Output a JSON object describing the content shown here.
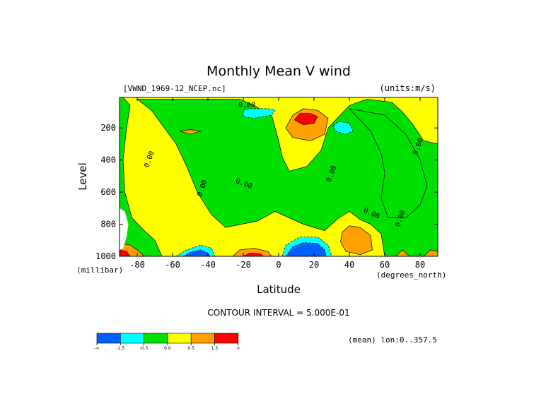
{
  "chart_data": {
    "type": "heatmap",
    "title": "Monthly Mean V wind",
    "dataset_label": "[VWND_1969-12_NCEP.nc]",
    "units_label": "(units:m/s)",
    "xlabel": "Latitude",
    "x_units": "(degrees_north)",
    "ylabel": "Level",
    "y_units": "(millibar)",
    "xlim": [
      -90,
      90
    ],
    "ylim": [
      1000,
      10
    ],
    "x_ticks": [
      -80,
      -60,
      -40,
      -20,
      0,
      20,
      40,
      60,
      80
    ],
    "x_tick_labels": [
      "-80",
      "-60",
      "-40",
      "-20",
      "0",
      "20",
      "40",
      "60",
      "80"
    ],
    "y_ticks": [
      200,
      400,
      600,
      800,
      1000
    ],
    "y_tick_labels": [
      "200",
      "400",
      "600",
      "800",
      "1000"
    ],
    "contour_interval_text": "CONTOUR INTERVAL = 5.000E-01",
    "contour_labels": [
      "0.00",
      "0.00",
      "0.00",
      "0.00",
      "0.00",
      "0.00",
      "0.00",
      "0.00"
    ],
    "legend": {
      "colors": [
        "#0060ff",
        "#00ffff",
        "#00e000",
        "#ffff00",
        "#ffa000",
        "#ff0000"
      ],
      "tick_labels": [
        "-∞",
        "-1.5",
        "-0.5",
        "0.0",
        "0.5",
        "1.5",
        "∞"
      ]
    },
    "footer_note": "(mean) lon:0..357.5",
    "fields": [
      {
        "level": "yellow",
        "points": [
          [
            -90,
            10
          ],
          [
            90,
            10
          ],
          [
            90,
            1000
          ],
          [
            -90,
            1000
          ]
        ]
      },
      {
        "level": "green",
        "points": [
          [
            -88,
            10
          ],
          [
            -84,
            60
          ],
          [
            -86,
            200
          ],
          [
            -88,
            400
          ],
          [
            -87,
            600
          ],
          [
            -83,
            760
          ],
          [
            -76,
            840
          ],
          [
            -70,
            900
          ],
          [
            -66,
            1000
          ],
          [
            -90,
            1000
          ],
          [
            -90,
            10
          ]
        ]
      },
      {
        "level": "green",
        "points": [
          [
            -80,
            20
          ],
          [
            -72,
            90
          ],
          [
            -66,
            180
          ],
          [
            -58,
            300
          ],
          [
            -52,
            440
          ],
          [
            -46,
            600
          ],
          [
            -38,
            740
          ],
          [
            -30,
            820
          ],
          [
            -12,
            780
          ],
          [
            -2,
            720
          ],
          [
            6,
            760
          ],
          [
            14,
            800
          ],
          [
            26,
            840
          ],
          [
            34,
            760
          ],
          [
            40,
            720
          ],
          [
            46,
            770
          ],
          [
            52,
            800
          ],
          [
            58,
            860
          ],
          [
            60,
            1000
          ],
          [
            90,
            1000
          ],
          [
            90,
            300
          ],
          [
            82,
            280
          ],
          [
            76,
            180
          ],
          [
            70,
            100
          ],
          [
            64,
            40
          ],
          [
            50,
            20
          ],
          [
            40,
            60
          ],
          [
            28,
            200
          ],
          [
            24,
            340
          ],
          [
            16,
            440
          ],
          [
            6,
            470
          ],
          [
            2,
            380
          ],
          [
            0,
            280
          ],
          [
            -4,
            120
          ],
          [
            -14,
            60
          ],
          [
            -22,
            20
          ]
        ]
      },
      {
        "level": "green",
        "points": [
          [
            40,
            80
          ],
          [
            52,
            220
          ],
          [
            58,
            360
          ],
          [
            60,
            480
          ],
          [
            58,
            640
          ],
          [
            62,
            760
          ],
          [
            72,
            760
          ],
          [
            80,
            680
          ],
          [
            84,
            560
          ],
          [
            80,
            400
          ],
          [
            72,
            240
          ],
          [
            60,
            120
          ]
        ]
      },
      {
        "level": "cyan",
        "points": [
          [
            -20,
            90
          ],
          [
            -16,
            80
          ],
          [
            -6,
            80
          ],
          [
            -2,
            90
          ],
          [
            -4,
            120
          ],
          [
            -14,
            140
          ],
          [
            -20,
            130
          ]
        ]
      },
      {
        "level": "cyan",
        "points": [
          [
            31,
            185
          ],
          [
            34,
            160
          ],
          [
            40,
            170
          ],
          [
            42,
            220
          ],
          [
            38,
            240
          ],
          [
            32,
            220
          ]
        ]
      },
      {
        "level": "cyan",
        "points": [
          [
            -58,
            1000
          ],
          [
            -52,
            960
          ],
          [
            -44,
            930
          ],
          [
            -38,
            950
          ],
          [
            -36,
            1000
          ]
        ]
      },
      {
        "level": "cyan",
        "points": [
          [
            2,
            1000
          ],
          [
            4,
            930
          ],
          [
            12,
            880
          ],
          [
            22,
            880
          ],
          [
            28,
            930
          ],
          [
            30,
            1000
          ]
        ]
      },
      {
        "level": "blue",
        "points": [
          [
            -54,
            1000
          ],
          [
            -50,
            975
          ],
          [
            -44,
            960
          ],
          [
            -40,
            980
          ],
          [
            -39,
            1000
          ]
        ]
      },
      {
        "level": "blue",
        "points": [
          [
            4,
            1000
          ],
          [
            8,
            940
          ],
          [
            14,
            915
          ],
          [
            22,
            920
          ],
          [
            26,
            960
          ],
          [
            27,
            1000
          ]
        ]
      },
      {
        "level": "orange",
        "points": [
          [
            4,
            200
          ],
          [
            8,
            120
          ],
          [
            14,
            80
          ],
          [
            22,
            90
          ],
          [
            28,
            140
          ],
          [
            26,
            240
          ],
          [
            18,
            280
          ],
          [
            8,
            260
          ]
        ]
      },
      {
        "level": "orange",
        "points": [
          [
            -56,
            220
          ],
          [
            -50,
            210
          ],
          [
            -44,
            220
          ],
          [
            -50,
            240
          ]
        ]
      },
      {
        "level": "orange",
        "points": [
          [
            36,
            850
          ],
          [
            40,
            810
          ],
          [
            46,
            820
          ],
          [
            52,
            870
          ],
          [
            53,
            960
          ],
          [
            46,
            990
          ],
          [
            38,
            970
          ],
          [
            35,
            910
          ]
        ]
      },
      {
        "level": "orange",
        "points": [
          [
            -26,
            1000
          ],
          [
            -22,
            960
          ],
          [
            -14,
            950
          ],
          [
            -6,
            970
          ],
          [
            -4,
            1000
          ]
        ]
      },
      {
        "level": "orange",
        "points": [
          [
            -90,
            920
          ],
          [
            -84,
            930
          ],
          [
            -80,
            960
          ],
          [
            -76,
            1000
          ],
          [
            -90,
            1000
          ]
        ]
      },
      {
        "level": "orange",
        "points": [
          [
            66,
            1000
          ],
          [
            70,
            960
          ],
          [
            74,
            1000
          ]
        ]
      },
      {
        "level": "orange",
        "points": [
          [
            82,
            1000
          ],
          [
            86,
            960
          ],
          [
            90,
            970
          ],
          [
            90,
            1000
          ]
        ]
      },
      {
        "level": "red",
        "points": [
          [
            9,
            150
          ],
          [
            12,
            110
          ],
          [
            18,
            110
          ],
          [
            22,
            130
          ],
          [
            20,
            170
          ],
          [
            14,
            180
          ]
        ]
      },
      {
        "level": "red",
        "points": [
          [
            -90,
            960
          ],
          [
            -86,
            970
          ],
          [
            -84,
            1000
          ],
          [
            -90,
            1000
          ]
        ]
      },
      {
        "level": "red",
        "points": [
          [
            -20,
            1000
          ],
          [
            -16,
            980
          ],
          [
            -10,
            985
          ],
          [
            -9,
            1000
          ]
        ]
      },
      {
        "level": "white",
        "points": [
          [
            -90,
            700
          ],
          [
            -87,
            720
          ],
          [
            -85,
            800
          ],
          [
            -86,
            880
          ],
          [
            -88,
            950
          ],
          [
            -90,
            960
          ]
        ]
      }
    ]
  }
}
